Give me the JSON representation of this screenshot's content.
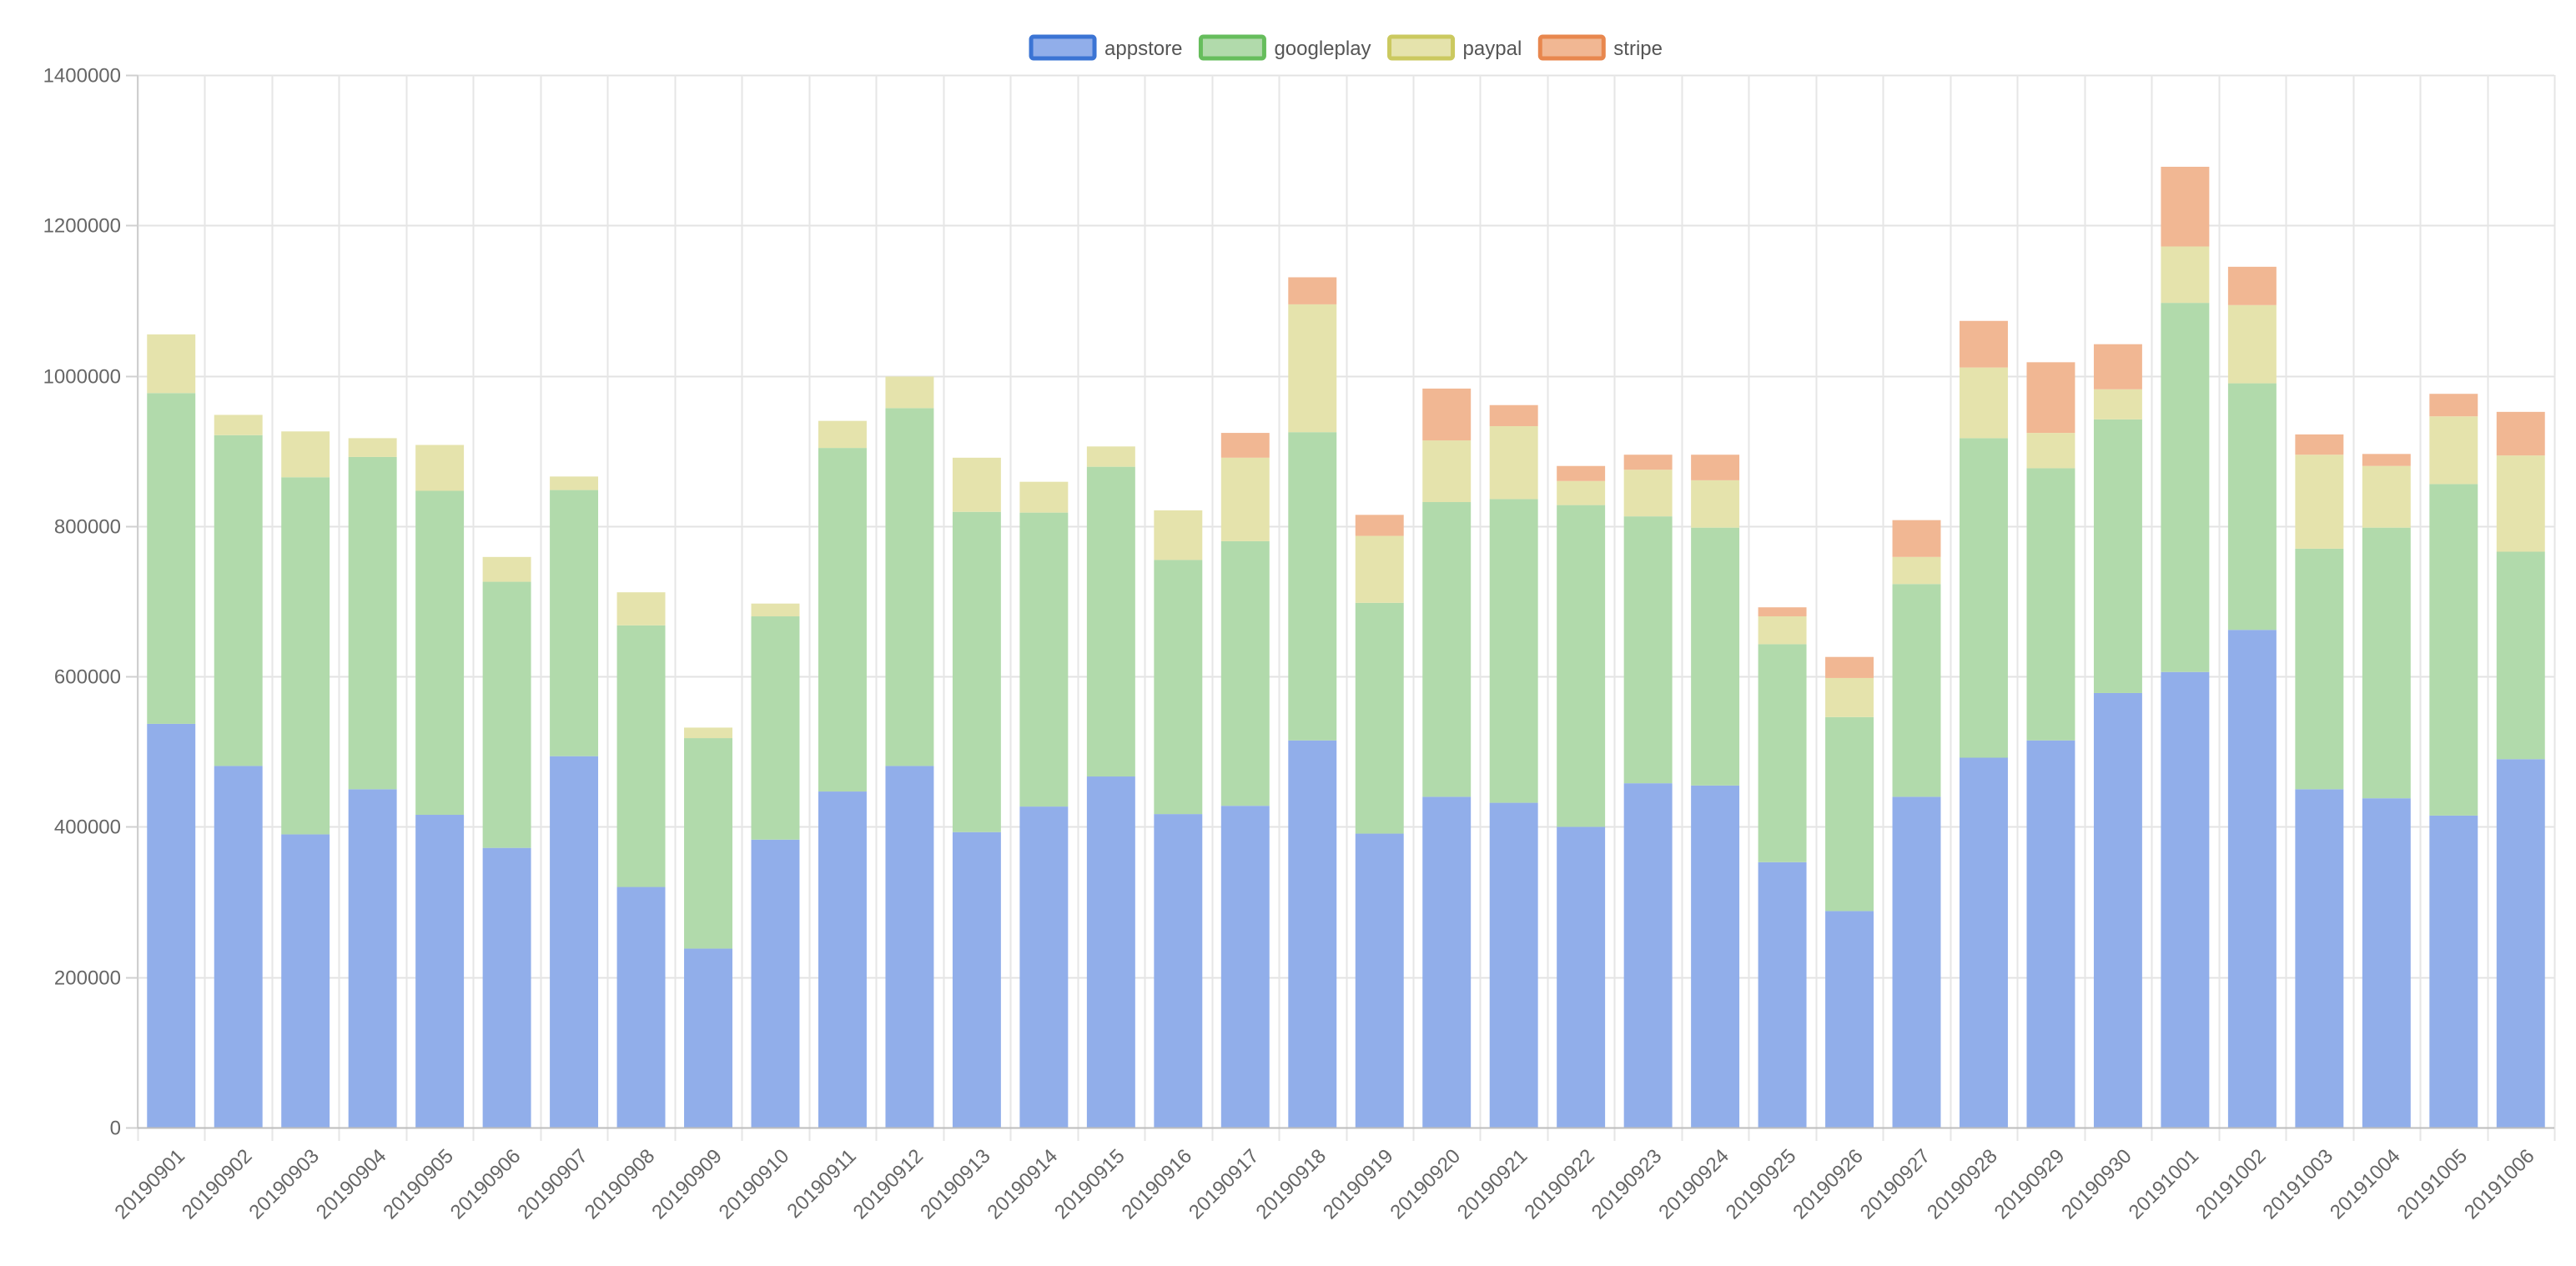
{
  "chart_data": {
    "type": "bar",
    "stacked": true,
    "title": "",
    "xlabel": "",
    "ylabel": "",
    "ylim": [
      0,
      1400000
    ],
    "y_ticks": [
      0,
      200000,
      400000,
      600000,
      800000,
      1000000,
      1200000,
      1400000
    ],
    "grid": true,
    "legend_position": "top-center",
    "categories": [
      "20190901",
      "20190902",
      "20190903",
      "20190904",
      "20190905",
      "20190906",
      "20190907",
      "20190908",
      "20190909",
      "20190910",
      "20190911",
      "20190912",
      "20190913",
      "20190914",
      "20190915",
      "20190916",
      "20190917",
      "20190918",
      "20190919",
      "20190920",
      "20190921",
      "20190922",
      "20190923",
      "20190924",
      "20190925",
      "20190926",
      "20190927",
      "20190928",
      "20190929",
      "20190930",
      "20191001",
      "20191002",
      "20191003",
      "20191004",
      "20191005",
      "20191006"
    ],
    "series": [
      {
        "name": "appstore",
        "fill": "#91aeea",
        "border": "#3b74d4",
        "values": [
          537000,
          481000,
          390000,
          450000,
          416000,
          372000,
          494000,
          320000,
          238000,
          383000,
          447000,
          481000,
          393000,
          427000,
          467000,
          417000,
          428000,
          515000,
          391000,
          440000,
          432000,
          400000,
          458000,
          455000,
          353000,
          288000,
          440000,
          492000,
          515000,
          578000,
          606000,
          662000,
          450000,
          438000,
          415000,
          490000
        ]
      },
      {
        "name": "googleplay",
        "fill": "#b1daab",
        "border": "#66bd5c",
        "values": [
          440000,
          440000,
          475000,
          442000,
          431000,
          354000,
          354000,
          348000,
          280000,
          297000,
          457000,
          476000,
          426000,
          391000,
          412000,
          338000,
          352000,
          410000,
          307000,
          392000,
          404000,
          428000,
          355000,
          343000,
          290000,
          258000,
          283000,
          425000,
          362000,
          364000,
          491000,
          328000,
          320000,
          360000,
          441000,
          276000
        ]
      },
      {
        "name": "paypal",
        "fill": "#e5e3ac",
        "border": "#cbc95f",
        "values": [
          78000,
          27000,
          61000,
          25000,
          61000,
          33000,
          18000,
          44000,
          14000,
          17000,
          36000,
          42000,
          72000,
          41000,
          27000,
          66000,
          111000,
          170000,
          89000,
          82000,
          97000,
          32000,
          62000,
          63000,
          37000,
          52000,
          36000,
          94000,
          47000,
          40000,
          75000,
          104000,
          125000,
          82000,
          90000,
          128000
        ]
      },
      {
        "name": "stripe",
        "fill": "#f1b793",
        "border": "#e8874e",
        "values": [
          0,
          0,
          0,
          0,
          0,
          0,
          0,
          0,
          0,
          0,
          0,
          0,
          0,
          0,
          0,
          0,
          33000,
          36000,
          28000,
          69000,
          28000,
          20000,
          20000,
          34000,
          12000,
          28000,
          49000,
          62000,
          94000,
          60000,
          106000,
          51000,
          27000,
          16000,
          30000,
          58000
        ]
      }
    ]
  }
}
